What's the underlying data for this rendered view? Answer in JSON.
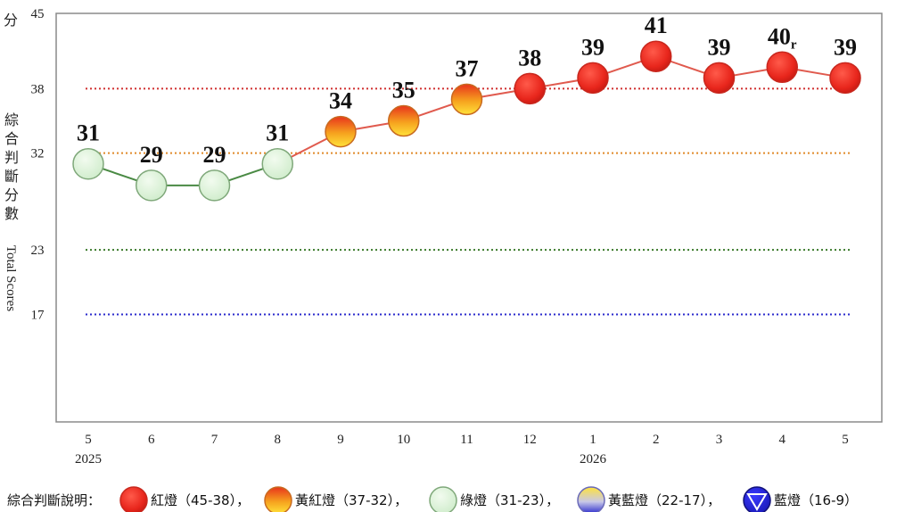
{
  "chart_data": {
    "type": "line",
    "y_unit_label": "分",
    "ylabel_zh": "綜合判斷分數",
    "ylabel_en": "Total Scores",
    "ylim": [
      7,
      45
    ],
    "y_ticks": [
      45,
      38,
      32,
      23,
      17
    ],
    "threshold_lines": [
      {
        "value": 38,
        "color": "#d03030"
      },
      {
        "value": 32,
        "color": "#e08a2a"
      },
      {
        "value": 23,
        "color": "#3a7a2a"
      },
      {
        "value": 17,
        "color": "#2a2acc"
      }
    ],
    "categories": [
      "5",
      "6",
      "7",
      "8",
      "9",
      "10",
      "11",
      "12",
      "1",
      "2",
      "3",
      "4",
      "5"
    ],
    "year_labels": [
      {
        "index": 0,
        "text": "2025"
      },
      {
        "index": 8,
        "text": "2026"
      }
    ],
    "values": [
      31,
      29,
      29,
      31,
      34,
      35,
      37,
      38,
      39,
      41,
      39,
      40,
      39
    ],
    "value_labels": [
      "31",
      "29",
      "29",
      "31",
      "34",
      "35",
      "37",
      "38",
      "39",
      "41",
      "39",
      "40",
      "39"
    ],
    "revised_marker": {
      "index": 11,
      "text": "r"
    },
    "signals": [
      "green",
      "green",
      "green",
      "green",
      "yellow-red",
      "yellow-red",
      "yellow-red",
      "red",
      "red",
      "red",
      "red",
      "red",
      "red"
    ],
    "segment_colors": {
      "green": "#4a8a44",
      "red": "#e05a4e"
    },
    "grid": false
  },
  "legend": {
    "title": "綜合判斷說明：",
    "items": [
      {
        "signal": "red",
        "label": "紅燈（45-38）",
        "sep": "，"
      },
      {
        "signal": "yellow-red",
        "label": "黃紅燈（37-32）",
        "sep": "，"
      },
      {
        "signal": "green",
        "label": "綠燈（31-23）",
        "sep": "，"
      },
      {
        "signal": "yellow-blue",
        "label": "黃藍燈（22-17）",
        "sep": "，"
      },
      {
        "signal": "blue",
        "label": "藍燈（16-9）",
        "sep": ""
      }
    ]
  }
}
